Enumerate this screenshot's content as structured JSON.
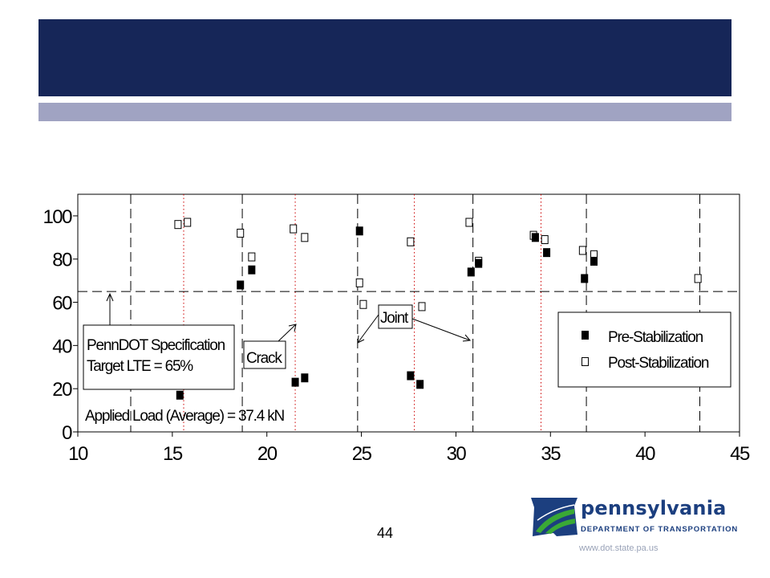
{
  "slide": {
    "page_number": "44",
    "url": "www.dot.state.pa.us"
  },
  "logo": {
    "name": "pennsylvania",
    "subtitle": "DEPARTMENT OF TRANSPORTATION",
    "colors": {
      "navy": "#1c3f7f",
      "green": "#3aa935"
    }
  },
  "colors": {
    "title_band": "#162658",
    "sub_band": "#a0a3c2",
    "spec_line": "#000000",
    "crack_line": "#cc0000"
  },
  "chart_data": {
    "type": "scatter",
    "xlim": [
      10,
      45
    ],
    "ylim": [
      0,
      110
    ],
    "x_ticks": [
      10,
      15,
      20,
      25,
      30,
      35,
      40,
      45
    ],
    "y_ticks": [
      0,
      20,
      40,
      60,
      80,
      100
    ],
    "grid": false,
    "legend_position": "right",
    "series": [
      {
        "name": "Pre-Stabilization",
        "marker": "filled-square",
        "points": [
          [
            15.4,
            17
          ],
          [
            18.6,
            68
          ],
          [
            19.2,
            75
          ],
          [
            21.5,
            23
          ],
          [
            22.0,
            25
          ],
          [
            24.9,
            93
          ],
          [
            27.6,
            26
          ],
          [
            28.1,
            22
          ],
          [
            30.8,
            74
          ],
          [
            31.2,
            78
          ],
          [
            34.2,
            90
          ],
          [
            34.8,
            83
          ],
          [
            36.8,
            71
          ],
          [
            37.3,
            79
          ]
        ]
      },
      {
        "name": "Post-Stabilization",
        "marker": "open-square",
        "points": [
          [
            15.3,
            96
          ],
          [
            15.8,
            97
          ],
          [
            18.6,
            92
          ],
          [
            19.2,
            81
          ],
          [
            21.4,
            94
          ],
          [
            22.0,
            90
          ],
          [
            24.9,
            69
          ],
          [
            25.1,
            59
          ],
          [
            27.6,
            88
          ],
          [
            28.2,
            58
          ],
          [
            30.7,
            97
          ],
          [
            31.2,
            79
          ],
          [
            34.1,
            91
          ],
          [
            34.7,
            89
          ],
          [
            36.7,
            84
          ],
          [
            37.3,
            82
          ],
          [
            42.8,
            71
          ]
        ]
      }
    ],
    "specification": {
      "value": 65
    },
    "joint_lines": [
      12.8,
      18.7,
      24.8,
      30.9,
      36.9,
      42.9
    ],
    "crack_lines": [
      15.6,
      21.5,
      27.8,
      34.5
    ],
    "annotations": {
      "spec_label_line1": "PennDOT Specification",
      "spec_label_line2": "Target LTE = 65%",
      "crack_label": "Crack",
      "joint_label": "Joint",
      "applied_load": "Applied Load (Average) = 37.4 kN"
    }
  }
}
